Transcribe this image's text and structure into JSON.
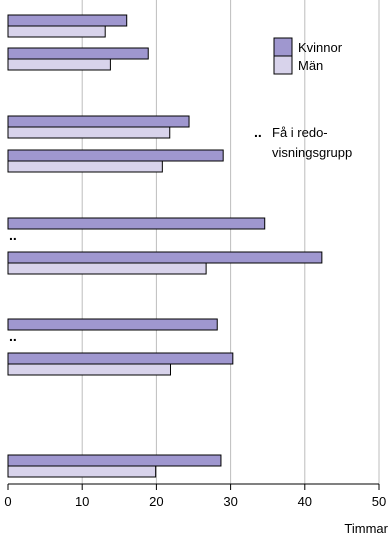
{
  "chart_data": {
    "type": "bar",
    "orientation": "horizontal",
    "xlabel": "Timmar",
    "xlim": [
      0,
      50
    ],
    "xticks": [
      0,
      10,
      20,
      30,
      40,
      50
    ],
    "grid": true,
    "legend_position": "top-right",
    "series": [
      {
        "name": "Kvinnor",
        "color": "#9F97CF"
      },
      {
        "name": "Män",
        "color": "#D8D3EB"
      }
    ],
    "bars": [
      {
        "kvinnor": 16,
        "man": 13.1
      },
      {
        "kvinnor": 18.9,
        "man": 13.8
      },
      {
        "kvinnor": 24.4,
        "man": 21.8
      },
      {
        "kvinnor": 29,
        "man": 20.8
      },
      {
        "kvinnor": 34.6,
        "man": null
      },
      {
        "kvinnor": 42.3,
        "man": 26.7
      },
      {
        "kvinnor": 28.2,
        "man": null
      },
      {
        "kvinnor": 30.3,
        "man": 21.9
      },
      {
        "kvinnor": null,
        "man": null
      },
      {
        "kvinnor": 28.7,
        "man": 19.9
      }
    ],
    "footnote_marker": "..",
    "footnote_text_line1": "Få i redo-",
    "footnote_text_line2": "visningsgrupp"
  }
}
